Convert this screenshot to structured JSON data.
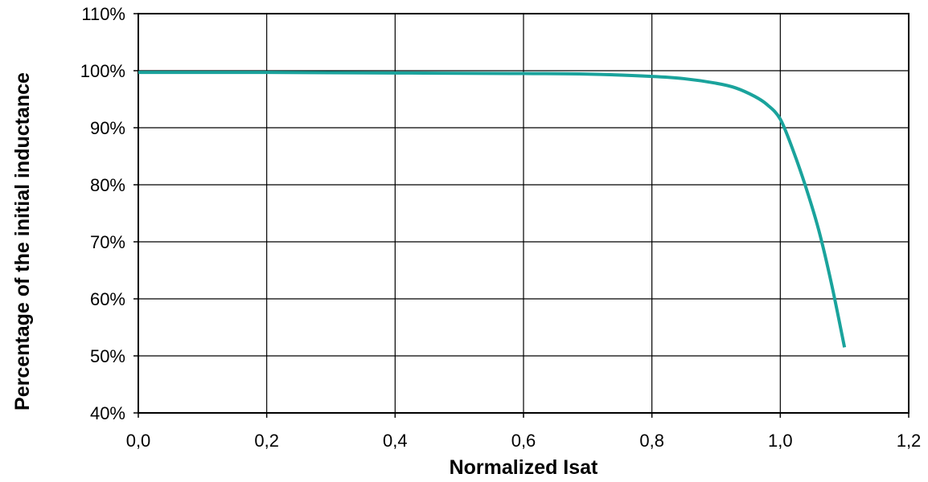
{
  "chart_data": {
    "type": "line",
    "title": "",
    "xlabel": "Normalized Isat",
    "ylabel": "Percentage of the initial inductance",
    "xlim": [
      0,
      1.2
    ],
    "ylim": [
      40,
      110
    ],
    "x_ticks": [
      0,
      0.2,
      0.4,
      0.6,
      0.8,
      1.0,
      1.2
    ],
    "x_tick_labels": [
      "0,0",
      "0,2",
      "0,4",
      "0,6",
      "0,8",
      "1,0",
      "1,2"
    ],
    "y_ticks": [
      40,
      50,
      60,
      70,
      80,
      90,
      100,
      110
    ],
    "y_tick_labels": [
      "40%",
      "50%",
      "60%",
      "70%",
      "80%",
      "90%",
      "100%",
      "110%"
    ],
    "grid": true,
    "line_color": "#1aa39c",
    "series": [
      {
        "x": [
          0.0,
          0.2,
          0.4,
          0.6,
          0.7,
          0.8,
          0.85,
          0.9,
          0.93,
          0.96,
          0.98,
          1.0,
          1.02,
          1.04,
          1.06,
          1.08,
          1.1
        ],
        "values": [
          99.7,
          99.7,
          99.6,
          99.5,
          99.4,
          99.0,
          98.6,
          97.8,
          97.0,
          95.5,
          94.0,
          91.5,
          86.0,
          79.5,
          72.0,
          62.5,
          51.5
        ]
      }
    ]
  }
}
